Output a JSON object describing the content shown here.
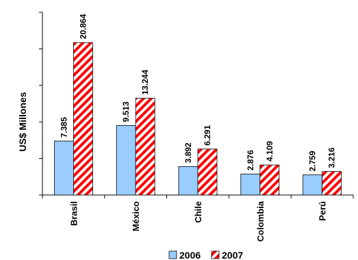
{
  "chart_data": {
    "type": "bar",
    "categories": [
      "Brasil",
      "México",
      "Chile",
      "Colombia",
      "Perú"
    ],
    "series": [
      {
        "name": "2006",
        "values": [
          7.385,
          9.513,
          3.892,
          2.876,
          2.759
        ],
        "value_labels": [
          "7.385",
          "9.513",
          "3.892",
          "2.876",
          "2.759"
        ],
        "color": "#99ccff",
        "pattern": "solid"
      },
      {
        "name": "2007",
        "values": [
          20.864,
          13.244,
          6.291,
          4.109,
          3.216
        ],
        "value_labels": [
          "20.864",
          "13.244",
          "6.291",
          "4.109",
          "3.216"
        ],
        "color": "#ff0000",
        "pattern": "diagonal-stripes"
      }
    ],
    "ylabel": "US$ Millones",
    "ylim": [
      0,
      25
    ],
    "y_tick_step": 5,
    "y_tick_labels_shown": false,
    "grid": false,
    "legend_position": "bottom"
  }
}
